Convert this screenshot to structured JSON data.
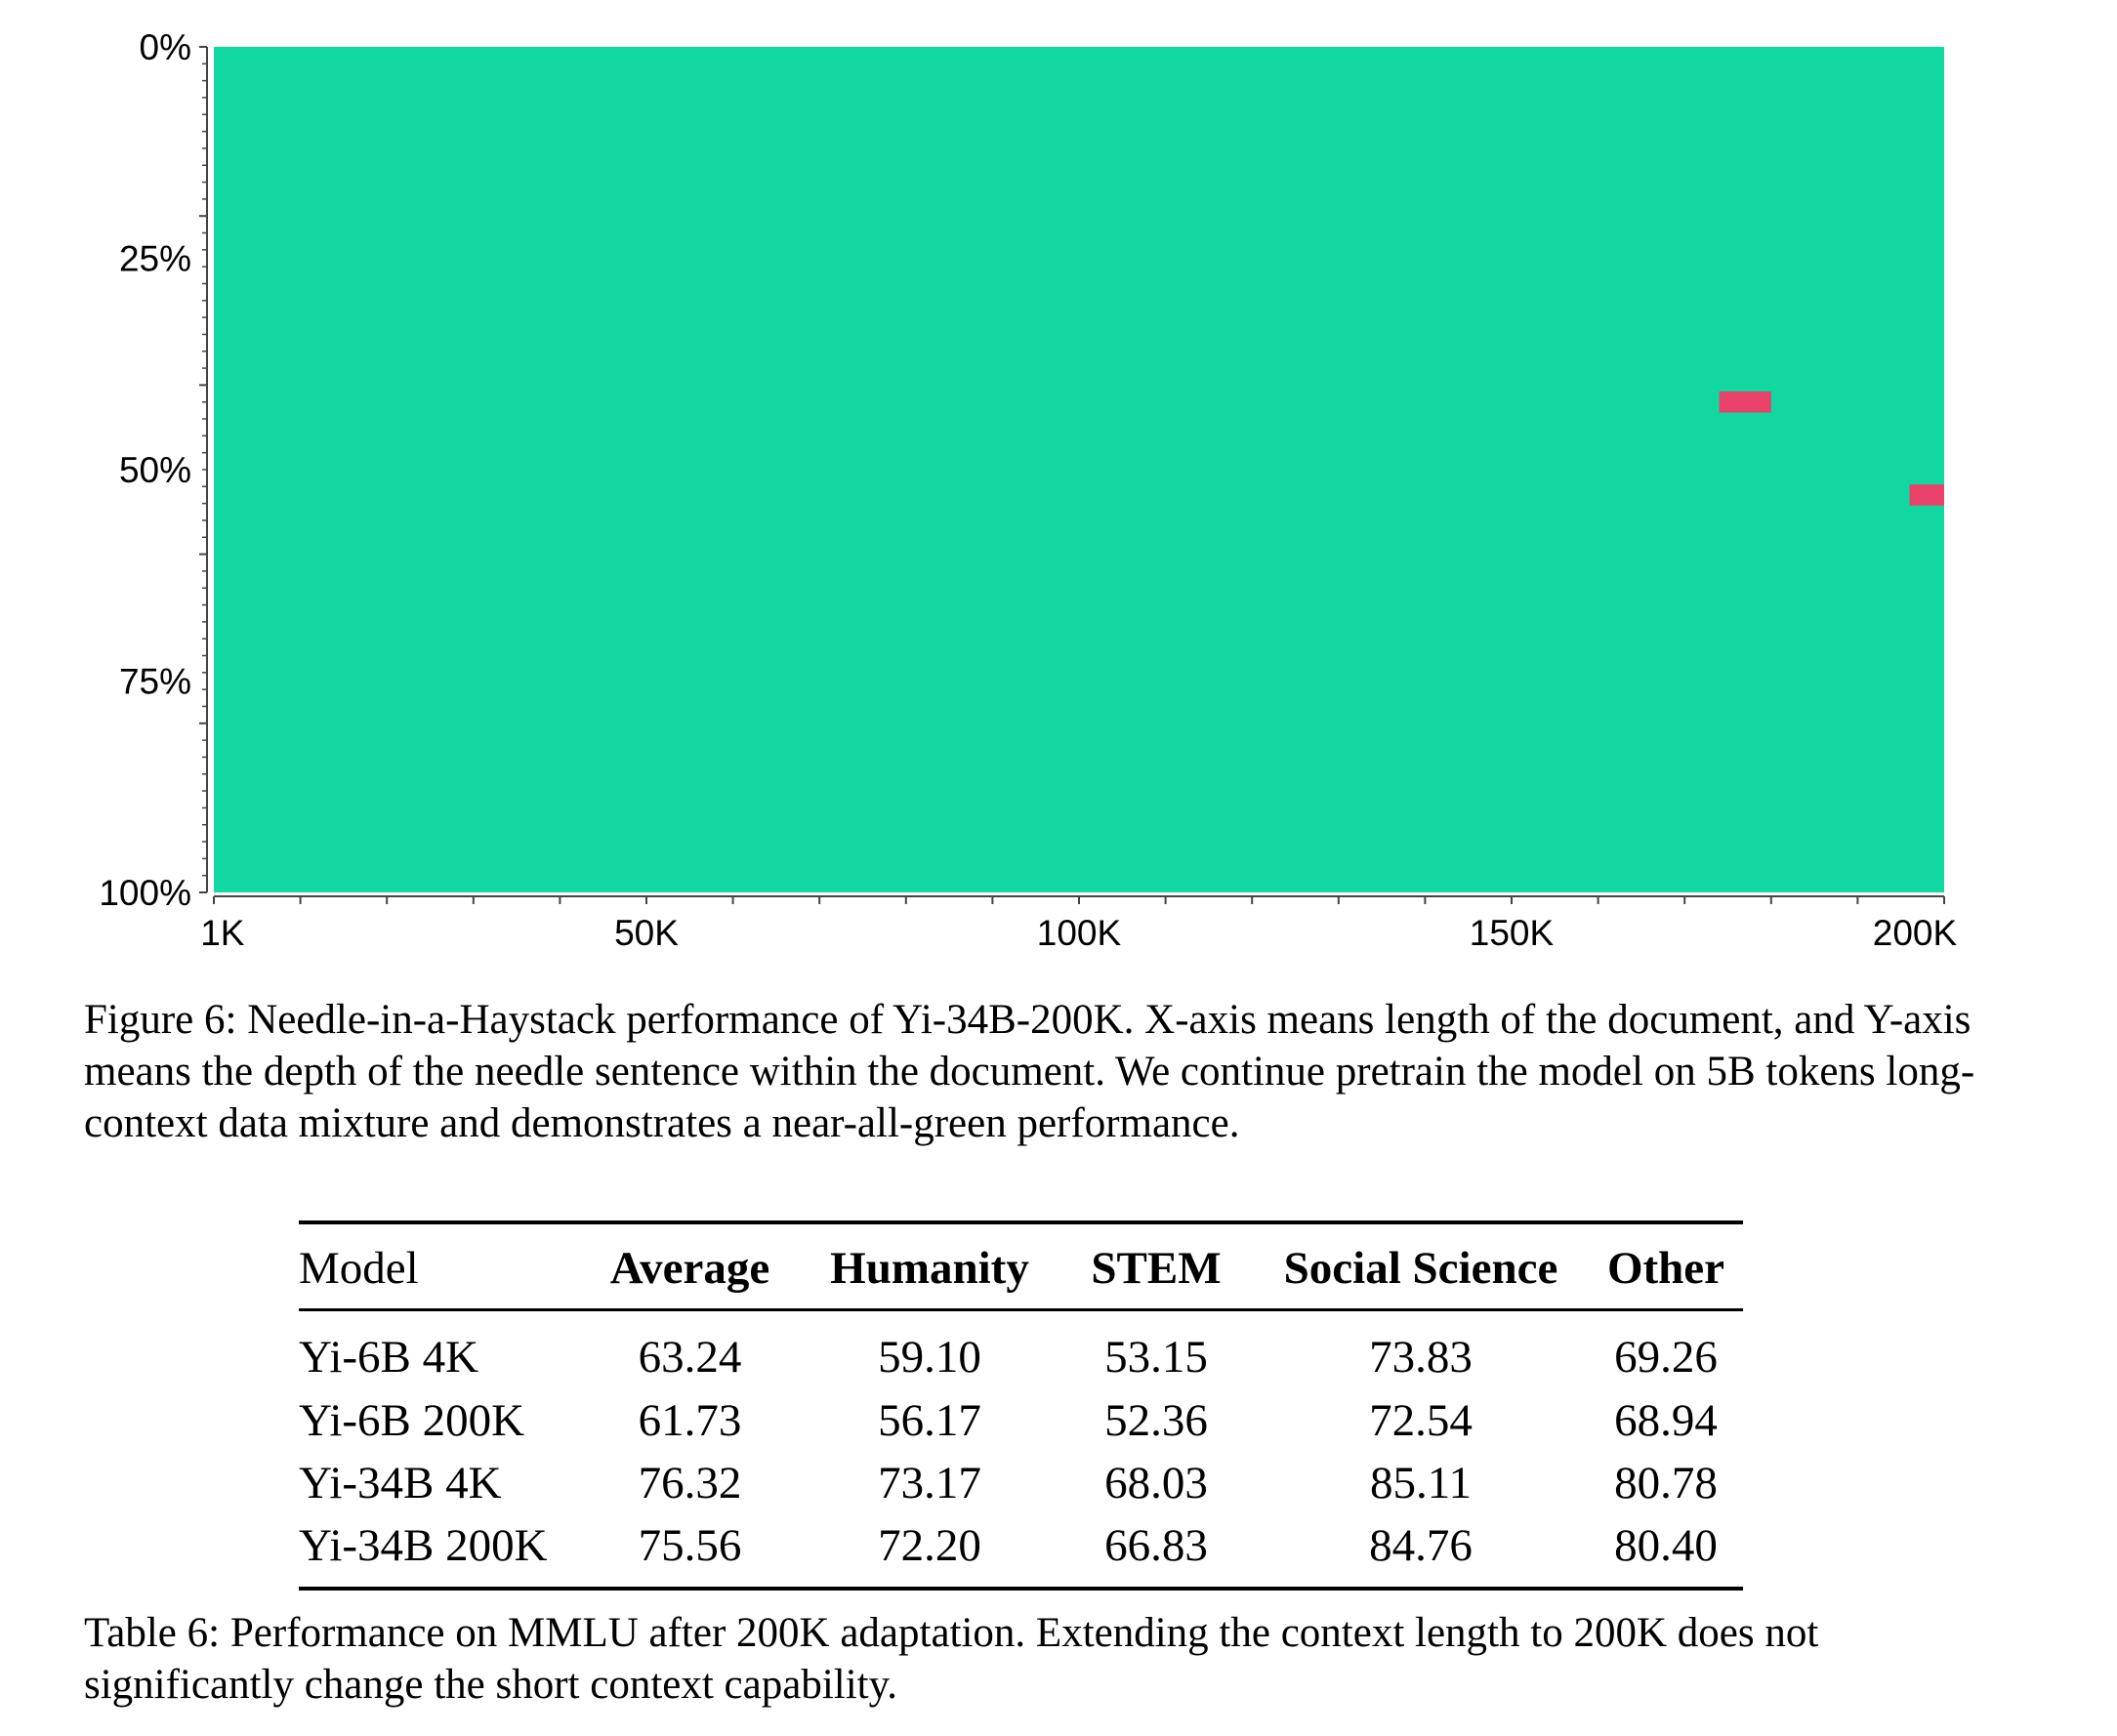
{
  "chart_data": {
    "type": "heatmap",
    "title": "",
    "xlabel": "",
    "ylabel": "",
    "x_ticks": [
      {
        "value": 1000,
        "label": "1K"
      },
      {
        "value": 50000,
        "label": "50K"
      },
      {
        "value": 100000,
        "label": "100K"
      },
      {
        "value": 150000,
        "label": "150K"
      },
      {
        "value": 200000,
        "label": "200K"
      }
    ],
    "y_ticks": [
      {
        "value": 0,
        "label": "0%"
      },
      {
        "value": 25,
        "label": "25%"
      },
      {
        "value": 50,
        "label": "50%"
      },
      {
        "value": 75,
        "label": "75%"
      },
      {
        "value": 100,
        "label": "100%"
      }
    ],
    "xlim": [
      0,
      200000
    ],
    "ylim": [
      0,
      100
    ],
    "background_cell_color": "#10d8a0",
    "failure_cell_color": "#e8416a",
    "failures": [
      {
        "x_start": 174000,
        "x_end": 180000,
        "depth": 42
      },
      {
        "x_start": 196000,
        "x_end": 200000,
        "depth": 53
      }
    ],
    "grid": false
  },
  "figure_caption": "Figure 6: Needle-in-a-Haystack performance of Yi-34B-200K. X-axis means length of the document, and Y-axis means the depth of the needle sentence within the document. We continue pretrain the model on 5B tokens long-context data mixture and demonstrates a near-all-green performance.",
  "table": {
    "headers": [
      "Model",
      "Average",
      "Humanity",
      "STEM",
      "Social Science",
      "Other"
    ],
    "rows": [
      [
        "Yi-6B 4K",
        "63.24",
        "59.10",
        "53.15",
        "73.83",
        "69.26"
      ],
      [
        "Yi-6B 200K",
        "61.73",
        "56.17",
        "52.36",
        "72.54",
        "68.94"
      ],
      [
        "Yi-34B 4K",
        "76.32",
        "73.17",
        "68.03",
        "85.11",
        "80.78"
      ],
      [
        "Yi-34B 200K",
        "75.56",
        "72.20",
        "66.83",
        "84.76",
        "80.40"
      ]
    ],
    "caption": "Table 6: Performance on MMLU after 200K adaptation. Extending the context length to 200K does not significantly change the short context capability."
  }
}
